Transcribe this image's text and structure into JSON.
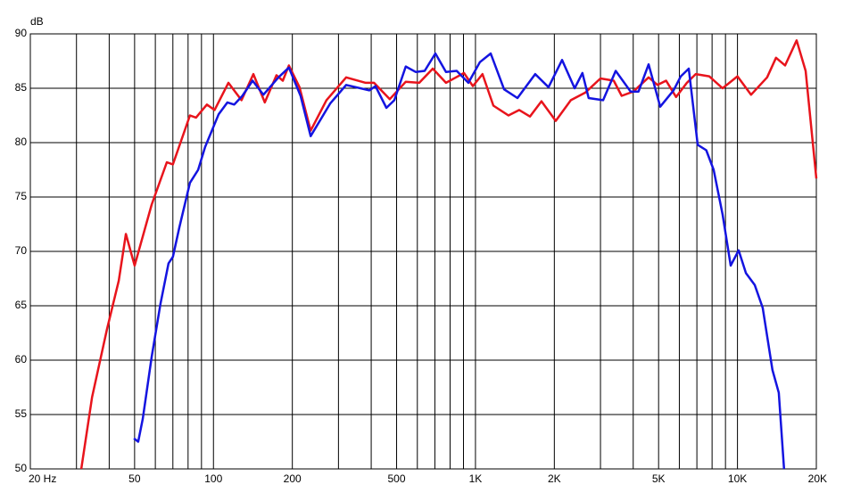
{
  "chart_data": {
    "type": "line",
    "ylabel": "dB",
    "xscale": "log",
    "grid": true,
    "xlim": [
      20,
      20000
    ],
    "ylim": [
      50,
      90
    ],
    "xticks": [
      {
        "value": 20,
        "label": "20 Hz"
      },
      50,
      100,
      200,
      500,
      {
        "value": 1000,
        "label": "1K"
      },
      {
        "value": 2000,
        "label": "2K"
      },
      {
        "value": 5000,
        "label": "5K"
      },
      {
        "value": 10000,
        "label": "10K"
      },
      {
        "value": 20000,
        "label": "20K"
      }
    ],
    "xminor": [
      30,
      40,
      60,
      70,
      80,
      90,
      300,
      400,
      600,
      700,
      800,
      900,
      3000,
      4000,
      6000,
      7000,
      8000,
      9000
    ],
    "yticks": [
      50,
      55,
      60,
      65,
      70,
      75,
      80,
      85,
      90
    ],
    "series": [
      {
        "color": "#e8141c",
        "x": [
          31.3,
          34.4,
          39.2,
          43.5,
          46.3,
          50,
          58.1,
          66.4,
          70,
          81.3,
          85.8,
          94.4,
          101,
          114,
          128,
          142,
          157,
          174,
          184,
          194,
          213,
          235,
          270,
          321,
          381,
          410,
          471,
          542,
          610,
          687,
          772,
          904,
          977,
          1064,
          1170,
          1336,
          1469,
          1614,
          1786,
          2025,
          2312,
          2625,
          3000,
          3370,
          3614,
          4006,
          4580,
          4955,
          5340,
          5830,
          6410,
          6930,
          7800,
          8770,
          10000,
          11270,
          12970,
          14030,
          15200,
          16820,
          18200,
          20000
        ],
        "values": [
          50,
          56.6,
          62.8,
          67.3,
          71.6,
          68.7,
          74.3,
          78.2,
          78,
          82.5,
          82.3,
          83.5,
          83,
          85.5,
          83.9,
          86.3,
          83.7,
          86.2,
          85.7,
          87.1,
          85.1,
          81.1,
          83.9,
          86,
          85.5,
          85.5,
          84,
          85.6,
          85.5,
          86.8,
          85.5,
          86.4,
          85.2,
          86.3,
          83.4,
          82.5,
          83,
          82.4,
          83.8,
          82,
          83.9,
          84.6,
          85.9,
          85.7,
          84.3,
          84.7,
          86,
          85.3,
          85.7,
          84.2,
          85.5,
          86.3,
          86.1,
          85,
          86.1,
          84.4,
          86,
          87.8,
          87.1,
          89.4,
          86.6,
          76.7
        ]
      },
      {
        "color": "#1414e0",
        "x": [
          49.7,
          51.6,
          53.7,
          58.1,
          62.8,
          67.4,
          70,
          74.1,
          81.3,
          87.4,
          92.9,
          104.6,
          113,
          120,
          129,
          141,
          155,
          177,
          194,
          215,
          235,
          279,
          321,
          394,
          415,
          457,
          490,
          542,
          591,
          640,
          703,
          772,
          848,
          940,
          1040,
          1143,
          1286,
          1446,
          1690,
          1900,
          2140,
          2390,
          2560,
          2705,
          3070,
          3430,
          3910,
          4190,
          4580,
          5070,
          5700,
          6080,
          6520,
          7050,
          7600,
          8110,
          8770,
          9420,
          10100,
          10770,
          11640,
          12480,
          13600,
          14380,
          15060
        ],
        "values": [
          52.8,
          52.5,
          54.6,
          60.3,
          65.2,
          68.9,
          69.5,
          72.2,
          76.3,
          77.5,
          79.6,
          82.6,
          83.7,
          83.5,
          84.3,
          85.7,
          84.4,
          86,
          86.9,
          84.3,
          80.6,
          83.6,
          85.3,
          84.8,
          85.2,
          83.2,
          83.9,
          87,
          86.5,
          86.6,
          88.2,
          86.5,
          86.6,
          85.5,
          87.4,
          88.2,
          84.9,
          84.1,
          86.3,
          85.1,
          87.6,
          85,
          86.4,
          84.1,
          83.9,
          86.6,
          84.7,
          84.7,
          87.2,
          83.3,
          84.8,
          86.1,
          86.8,
          79.8,
          79.3,
          77.5,
          73.4,
          68.7,
          70.1,
          68,
          66.9,
          64.8,
          59.1,
          57,
          50
        ]
      }
    ]
  }
}
